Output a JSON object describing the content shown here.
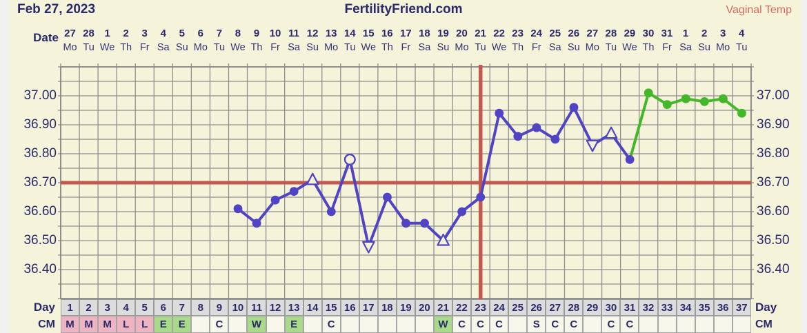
{
  "colors": {
    "cream": "#f5f3da",
    "page_edge": "#f0f0f0",
    "navy": "#29296b",
    "salmon": "#d9695c",
    "red_line": "#c3584e",
    "grid": "#8f8f8f",
    "grid_border": "#7d7d7d",
    "temp_pre": "#5044c4",
    "temp_post": "#43b629",
    "day_cell_bg": "#dcdcdc",
    "cm_pink": "#efb4c2",
    "cm_green": "#a9da89",
    "cm_plain": "#f8f7ec"
  },
  "header": {
    "date_title": "Feb 27, 2023",
    "site_title": "FertilityFriend.com",
    "temp_label": "Vaginal Temp"
  },
  "chart_data": {
    "type": "line",
    "title": "Vaginal Temp",
    "grid": true,
    "coverline": 36.7,
    "ovulation_line_day": 23,
    "x_axis": {
      "label": "Date",
      "day_label": "Day",
      "dates": [
        "27",
        "28",
        "1",
        "2",
        "3",
        "4",
        "5",
        "6",
        "7",
        "8",
        "9",
        "10",
        "11",
        "12",
        "13",
        "14",
        "15",
        "16",
        "17",
        "18",
        "19",
        "20",
        "21",
        "22",
        "23",
        "24",
        "25",
        "26",
        "27",
        "28",
        "29",
        "30",
        "31",
        "1",
        "2",
        "3",
        "4"
      ],
      "weekdays": [
        "Mo",
        "Tu",
        "We",
        "Th",
        "Fr",
        "Sa",
        "Su",
        "Mo",
        "Tu",
        "We",
        "Th",
        "Fr",
        "Sa",
        "Su",
        "Mo",
        "Tu",
        "We",
        "Th",
        "Fr",
        "Sa",
        "Su",
        "Mo",
        "Tu",
        "We",
        "Th",
        "Fr",
        "Sa",
        "Su",
        "Mo",
        "Tu",
        "We",
        "Th",
        "Fr",
        "Sa",
        "Su",
        "Mo",
        "Tu"
      ],
      "day_numbers": [
        "1",
        "2",
        "3",
        "4",
        "5",
        "6",
        "7",
        "8",
        "9",
        "10",
        "11",
        "12",
        "13",
        "14",
        "15",
        "16",
        "17",
        "18",
        "19",
        "20",
        "21",
        "22",
        "23",
        "24",
        "25",
        "26",
        "27",
        "28",
        "29",
        "30",
        "31",
        "32",
        "33",
        "34",
        "35",
        "36",
        "37"
      ]
    },
    "y_axis": {
      "tick_labels": [
        "37.00",
        "36.90",
        "36.80",
        "36.70",
        "36.60",
        "36.50",
        "36.40"
      ],
      "ylim": [
        36.3,
        37.1
      ],
      "tick_step": 0.05
    },
    "series": [
      {
        "name": "Vaginal Temp",
        "points": [
          {
            "day": 10,
            "temp": 36.61,
            "marker": "dot",
            "phase": "pre"
          },
          {
            "day": 11,
            "temp": 36.56,
            "marker": "dot",
            "phase": "pre"
          },
          {
            "day": 12,
            "temp": 36.64,
            "marker": "dot",
            "phase": "pre"
          },
          {
            "day": 13,
            "temp": 36.67,
            "marker": "dot",
            "phase": "pre"
          },
          {
            "day": 14,
            "temp": 36.71,
            "marker": "triangle-up-open",
            "phase": "pre"
          },
          {
            "day": 15,
            "temp": 36.6,
            "marker": "dot",
            "phase": "pre"
          },
          {
            "day": 16,
            "temp": 36.78,
            "marker": "circle-open",
            "phase": "pre"
          },
          {
            "day": 17,
            "temp": 36.48,
            "marker": "triangle-down-open",
            "phase": "pre"
          },
          {
            "day": 18,
            "temp": 36.65,
            "marker": "dot",
            "phase": "pre"
          },
          {
            "day": 19,
            "temp": 36.56,
            "marker": "dot",
            "phase": "pre"
          },
          {
            "day": 20,
            "temp": 36.56,
            "marker": "dot",
            "phase": "pre"
          },
          {
            "day": 21,
            "temp": 36.5,
            "marker": "triangle-up-open",
            "phase": "pre"
          },
          {
            "day": 22,
            "temp": 36.6,
            "marker": "dot",
            "phase": "pre"
          },
          {
            "day": 23,
            "temp": 36.65,
            "marker": "dot",
            "phase": "pre"
          },
          {
            "day": 24,
            "temp": 36.94,
            "marker": "dot",
            "phase": "pre"
          },
          {
            "day": 25,
            "temp": 36.86,
            "marker": "dot",
            "phase": "pre"
          },
          {
            "day": 26,
            "temp": 36.89,
            "marker": "dot",
            "phase": "pre"
          },
          {
            "day": 27,
            "temp": 36.85,
            "marker": "dot",
            "phase": "pre"
          },
          {
            "day": 28,
            "temp": 36.96,
            "marker": "dot",
            "phase": "pre"
          },
          {
            "day": 29,
            "temp": 36.83,
            "marker": "triangle-down-open",
            "phase": "pre"
          },
          {
            "day": 30,
            "temp": 36.87,
            "marker": "triangle-up-open",
            "phase": "pre"
          },
          {
            "day": 31,
            "temp": 36.78,
            "marker": "dot",
            "phase": "pre"
          },
          {
            "day": 32,
            "temp": 37.01,
            "marker": "dot",
            "phase": "post"
          },
          {
            "day": 33,
            "temp": 36.97,
            "marker": "dot",
            "phase": "post"
          },
          {
            "day": 34,
            "temp": 36.99,
            "marker": "dot",
            "phase": "post"
          },
          {
            "day": 35,
            "temp": 36.98,
            "marker": "dot",
            "phase": "post"
          },
          {
            "day": 36,
            "temp": 36.99,
            "marker": "dot",
            "phase": "post"
          },
          {
            "day": 37,
            "temp": 36.94,
            "marker": "dot",
            "phase": "post"
          }
        ]
      }
    ]
  },
  "cm_row": {
    "label": "CM",
    "cells": [
      {
        "label": "M",
        "style": "pink"
      },
      {
        "label": "M",
        "style": "pink"
      },
      {
        "label": "M",
        "style": "pink"
      },
      {
        "label": "L",
        "style": "pink"
      },
      {
        "label": "L",
        "style": "pink"
      },
      {
        "label": "E",
        "style": "green"
      },
      {
        "label": "E",
        "style": "green"
      },
      {
        "label": "",
        "style": "plain"
      },
      {
        "label": "C",
        "style": "plain"
      },
      {
        "label": "",
        "style": "plain"
      },
      {
        "label": "W",
        "style": "green"
      },
      {
        "label": "",
        "style": "plain"
      },
      {
        "label": "E",
        "style": "green"
      },
      {
        "label": "",
        "style": "plain"
      },
      {
        "label": "C",
        "style": "plain"
      },
      {
        "label": "",
        "style": "plain"
      },
      {
        "label": "",
        "style": "plain"
      },
      {
        "label": "",
        "style": "plain"
      },
      {
        "label": "",
        "style": "plain"
      },
      {
        "label": "",
        "style": "plain"
      },
      {
        "label": "W",
        "style": "green"
      },
      {
        "label": "C",
        "style": "plain"
      },
      {
        "label": "C",
        "style": "plain"
      },
      {
        "label": "C",
        "style": "plain"
      },
      {
        "label": "",
        "style": "plain"
      },
      {
        "label": "S",
        "style": "plain"
      },
      {
        "label": "C",
        "style": "plain"
      },
      {
        "label": "C",
        "style": "plain"
      },
      {
        "label": "",
        "style": "plain"
      },
      {
        "label": "C",
        "style": "plain"
      },
      {
        "label": "C",
        "style": "plain"
      },
      {
        "label": "",
        "style": "plain"
      },
      {
        "label": "",
        "style": "plain"
      },
      {
        "label": "",
        "style": "plain"
      },
      {
        "label": "",
        "style": "plain"
      },
      {
        "label": "",
        "style": "plain"
      },
      {
        "label": "",
        "style": "plain"
      }
    ]
  }
}
